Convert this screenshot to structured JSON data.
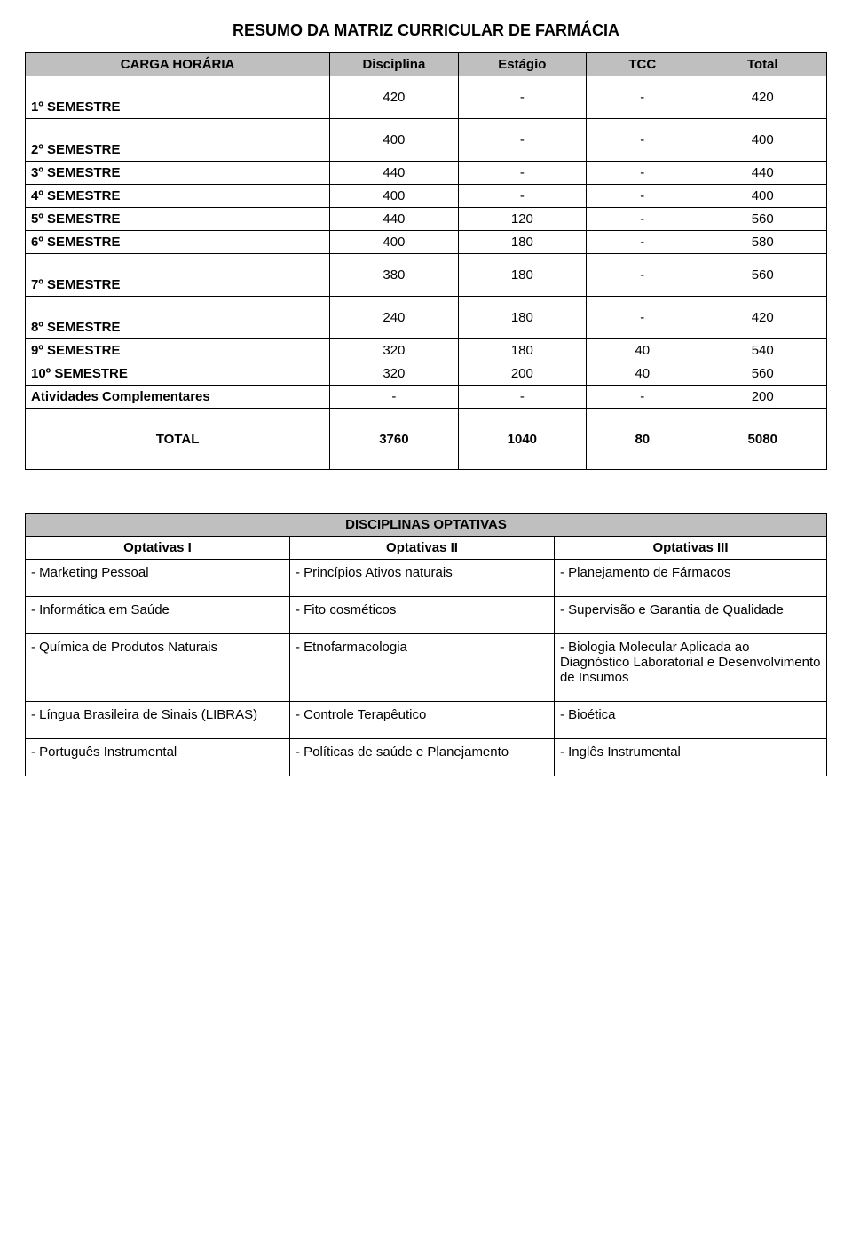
{
  "title": "RESUMO DA MATRIZ CURRICULAR DE FARMÁCIA",
  "table1": {
    "header": {
      "carga": "CARGA HORÁRIA",
      "disciplina": "Disciplina",
      "estagio": "Estágio",
      "tcc": "TCC",
      "total": "Total"
    },
    "rows": [
      {
        "label": "1º SEMESTRE",
        "disciplina": "420",
        "estagio": "-",
        "tcc": "-",
        "total": "420",
        "tall": true
      },
      {
        "label": "2º SEMESTRE",
        "disciplina": "400",
        "estagio": "-",
        "tcc": "-",
        "total": "400",
        "tall": true
      },
      {
        "label": "3º SEMESTRE",
        "disciplina": "440",
        "estagio": "-",
        "tcc": "-",
        "total": "440"
      },
      {
        "label": "4º SEMESTRE",
        "disciplina": "400",
        "estagio": "-",
        "tcc": "-",
        "total": "400"
      },
      {
        "label": "5º SEMESTRE",
        "disciplina": "440",
        "estagio": "120",
        "tcc": "-",
        "total": "560"
      },
      {
        "label": "6º SEMESTRE",
        "disciplina": "400",
        "estagio": "180",
        "tcc": "-",
        "total": "580"
      },
      {
        "label": "7º SEMESTRE",
        "disciplina": "380",
        "estagio": "180",
        "tcc": "-",
        "total": "560",
        "tall": true
      },
      {
        "label": "8º SEMESTRE",
        "disciplina": "240",
        "estagio": "180",
        "tcc": "-",
        "total": "420",
        "tall": true
      },
      {
        "label": "9º SEMESTRE",
        "disciplina": "320",
        "estagio": "180",
        "tcc": "40",
        "total": "540"
      },
      {
        "label": "10º SEMESTRE",
        "disciplina": "320",
        "estagio": "200",
        "tcc": "40",
        "total": "560"
      },
      {
        "label": "Atividades Complementares",
        "disciplina": "-",
        "estagio": "-",
        "tcc": "-",
        "total": "200"
      }
    ],
    "totalRow": {
      "label": "TOTAL",
      "disciplina": "3760",
      "estagio": "1040",
      "tcc": "80",
      "total": "5080"
    }
  },
  "table2": {
    "title": "DISCIPLINAS OPTATIVAS",
    "subheaders": {
      "c1": "Optativas I",
      "c2": "Optativas II",
      "c3": "Optativas III"
    },
    "rows": [
      {
        "c1": "- Marketing Pessoal",
        "c2": "- Princípios Ativos naturais",
        "c3": "- Planejamento de Fármacos"
      },
      {
        "c1": "- Informática em Saúde",
        "c2": " - Fito cosméticos",
        "c3": "- Supervisão e Garantia de Qualidade"
      },
      {
        "c1": "- Química de Produtos Naturais",
        "c2": " - Etnofarmacologia",
        "c3": " - Biologia Molecular Aplicada ao Diagnóstico Laboratorial e Desenvolvimento de Insumos"
      },
      {
        "c1": "- Língua Brasileira de Sinais (LIBRAS)",
        "c2": "- Controle Terapêutico",
        "c3": " - Bioética"
      },
      {
        "c1": "- Português Instrumental",
        "c2": "- Políticas de saúde e Planejamento",
        "c3": " - Inglês Instrumental"
      }
    ]
  },
  "cols": {
    "c1": "38%",
    "c2": "16%",
    "c3": "16%",
    "c4": "14%",
    "c5": "16%"
  },
  "optcols": {
    "c1": "33%",
    "c2": "33%",
    "c3": "34%"
  }
}
